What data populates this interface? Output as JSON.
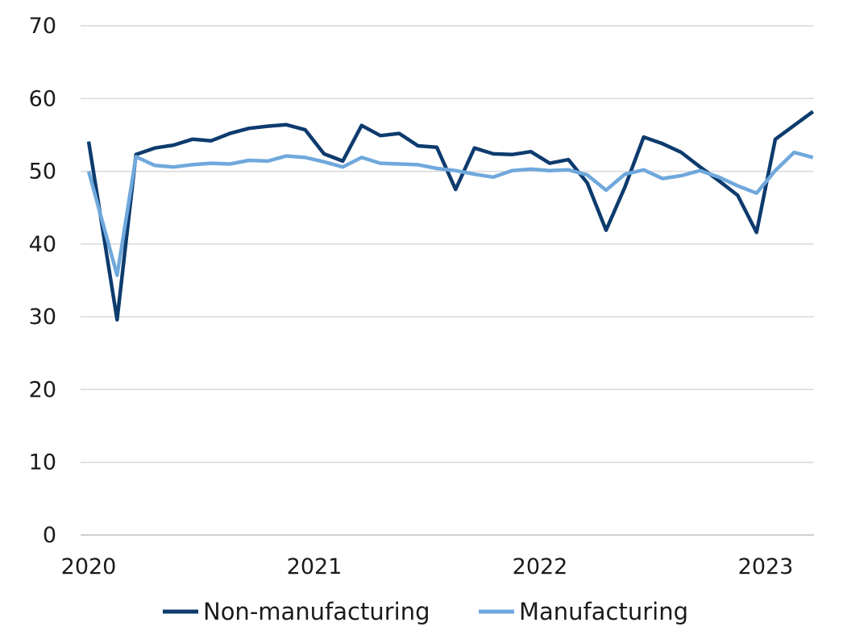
{
  "chart_data": {
    "type": "line",
    "title": "",
    "xlabel": "",
    "ylabel": "",
    "ylim": [
      0,
      70
    ],
    "yticks": [
      0,
      10,
      20,
      30,
      40,
      50,
      60,
      70
    ],
    "x_tick_labels": [
      "2020",
      "2021",
      "2022",
      "2023"
    ],
    "x": [
      "2020-01",
      "2020-02",
      "2020-03",
      "2020-04",
      "2020-05",
      "2020-06",
      "2020-07",
      "2020-08",
      "2020-09",
      "2020-10",
      "2020-11",
      "2020-12",
      "2021-01",
      "2021-02",
      "2021-03",
      "2021-04",
      "2021-05",
      "2021-06",
      "2021-07",
      "2021-08",
      "2021-09",
      "2021-10",
      "2021-11",
      "2021-12",
      "2022-01",
      "2022-02",
      "2022-03",
      "2022-04",
      "2022-05",
      "2022-06",
      "2022-07",
      "2022-08",
      "2022-09",
      "2022-10",
      "2022-11",
      "2022-12",
      "2023-01",
      "2023-02",
      "2023-03"
    ],
    "grid": true,
    "legend_position": "bottom",
    "series": [
      {
        "name": "Non-manufacturing",
        "color": "#0d3b6e",
        "values": [
          54.1,
          29.6,
          52.3,
          53.2,
          53.6,
          54.4,
          54.2,
          55.2,
          55.9,
          56.2,
          56.4,
          55.7,
          52.4,
          51.4,
          56.3,
          54.9,
          55.2,
          53.5,
          53.3,
          47.5,
          53.2,
          52.4,
          52.3,
          52.7,
          51.1,
          51.6,
          48.4,
          41.9,
          47.8,
          54.7,
          53.8,
          52.6,
          50.6,
          48.7,
          46.7,
          41.6,
          54.4,
          56.3,
          58.2
        ]
      },
      {
        "name": "Manufacturing",
        "color": "#6fa8dc",
        "values": [
          50.0,
          35.7,
          52.0,
          50.8,
          50.6,
          50.9,
          51.1,
          51.0,
          51.5,
          51.4,
          52.1,
          51.9,
          51.3,
          50.6,
          51.9,
          51.1,
          51.0,
          50.9,
          50.4,
          50.1,
          49.6,
          49.2,
          50.1,
          50.3,
          50.1,
          50.2,
          49.5,
          47.4,
          49.6,
          50.2,
          49.0,
          49.4,
          50.1,
          49.2,
          48.0,
          47.0,
          50.1,
          52.6,
          51.9
        ]
      }
    ]
  }
}
